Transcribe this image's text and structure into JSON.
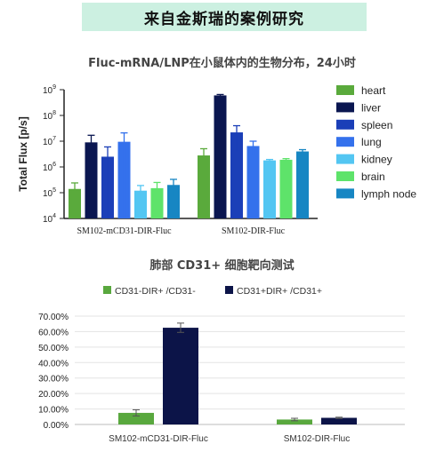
{
  "header": {
    "title": "来自金斯瑞的案例研究"
  },
  "chart_data": [
    {
      "type": "bar",
      "title": "Fluc-mRNA/LNP在小鼠体内的生物分布，24小时",
      "ylabel": "Total Flux [p/s]",
      "yscale": "log",
      "ylim": [
        10000,
        1000000000
      ],
      "yticks": [
        {
          "base": "10",
          "exp": "4",
          "value": 10000
        },
        {
          "base": "10",
          "exp": "5",
          "value": 100000
        },
        {
          "base": "10",
          "exp": "6",
          "value": 1000000
        },
        {
          "base": "10",
          "exp": "7",
          "value": 10000000
        },
        {
          "base": "10",
          "exp": "8",
          "value": 100000000
        },
        {
          "base": "10",
          "exp": "9",
          "value": 1000000000
        }
      ],
      "categories": [
        "SM102-mCD31-DIR-Fluc",
        "SM102-DIR-Fluc"
      ],
      "legend_position": "right",
      "series": [
        {
          "name": "heart",
          "color": "#5aaa3c",
          "values": [
            140000,
            2800000
          ],
          "errors": [
            100000,
            2300000
          ]
        },
        {
          "name": "liver",
          "color": "#0a1650",
          "values": [
            9000000,
            600000000
          ],
          "errors": [
            8000000,
            50000000
          ]
        },
        {
          "name": "spleen",
          "color": "#1b3fb8",
          "values": [
            2500000,
            22000000
          ],
          "errors": [
            3500000,
            18000000
          ]
        },
        {
          "name": "lung",
          "color": "#3471ec",
          "values": [
            9500000,
            6500000
          ],
          "errors": [
            11500000,
            3500000
          ]
        },
        {
          "name": "kidney",
          "color": "#53c6f2",
          "values": [
            120000,
            1800000
          ],
          "errors": [
            70000,
            150000
          ]
        },
        {
          "name": "brain",
          "color": "#5ee36a",
          "values": [
            150000,
            1900000
          ],
          "errors": [
            100000,
            200000
          ]
        },
        {
          "name": "lymph node",
          "color": "#1786c3",
          "values": [
            200000,
            4000000
          ],
          "errors": [
            130000,
            700000
          ]
        }
      ]
    },
    {
      "type": "bar",
      "title": "肺部 CD31+ 细胞靶向测试",
      "ylim": [
        0,
        70
      ],
      "ytick_labels": [
        "0.00%",
        "10.00%",
        "20.00%",
        "30.00%",
        "40.00%",
        "50.00%",
        "60.00%",
        "70.00%"
      ],
      "grid": true,
      "legend_position": "top",
      "categories": [
        "SM102-mCD31-DIR-Fluc",
        "SM102-DIR-Fluc"
      ],
      "series": [
        {
          "name": "CD31-DIR+ /CD31-",
          "color": "#59a83e",
          "values": [
            7.5,
            3.2
          ],
          "errors": [
            2.0,
            0.8
          ]
        },
        {
          "name": "CD31+DIR+ /CD31+",
          "color": "#0c1448",
          "values": [
            62.5,
            4.3
          ],
          "errors": [
            3.0,
            0.4
          ]
        }
      ]
    }
  ]
}
